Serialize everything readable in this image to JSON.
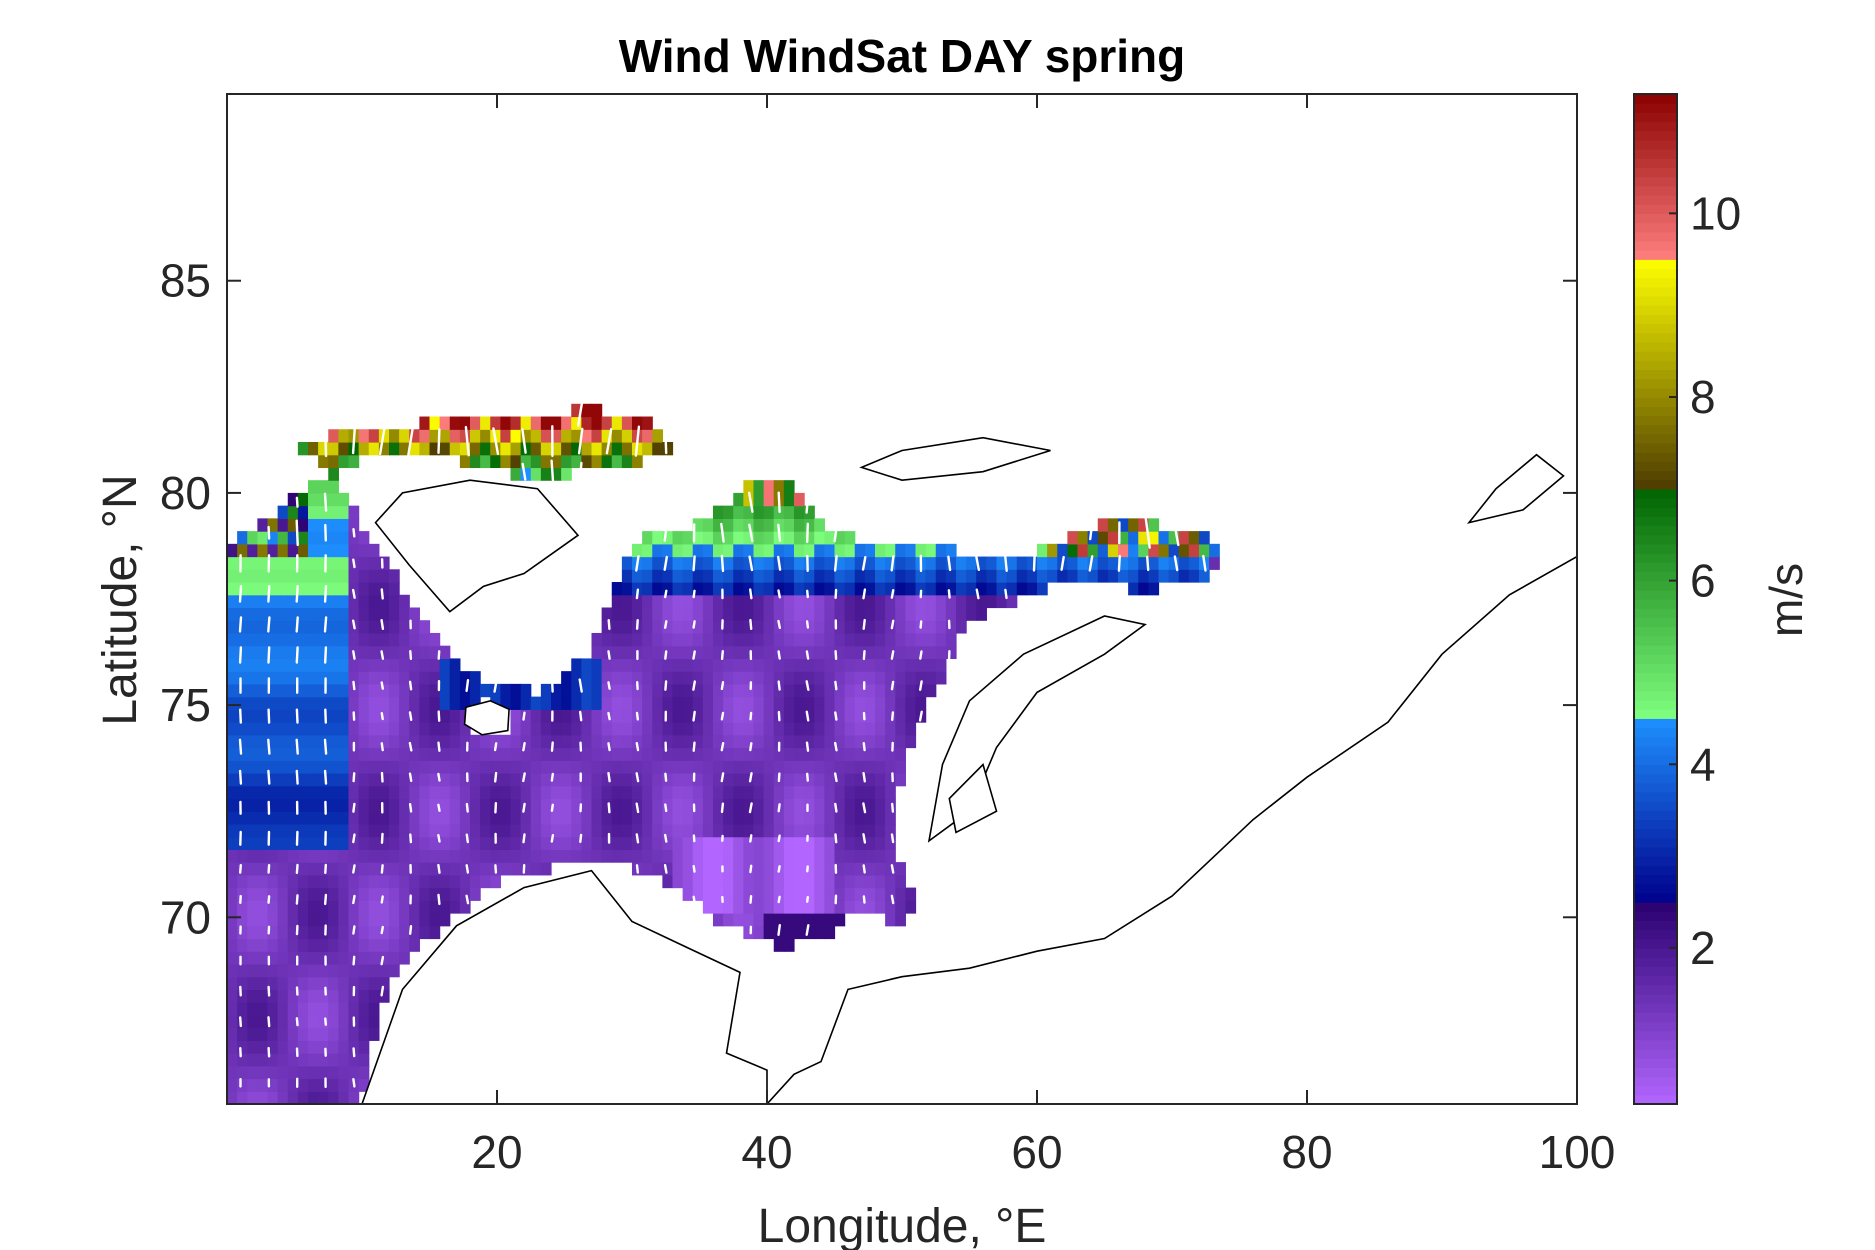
{
  "chart_data": {
    "type": "heatmap",
    "title": "Wind WindSat DAY spring",
    "xlabel": "Longitude, °E",
    "ylabel": "Latitude, °N",
    "xlim": [
      0,
      100
    ],
    "ylim": [
      65.6,
      89.4
    ],
    "xticks": [
      20,
      40,
      60,
      80,
      100
    ],
    "yticks": [
      70,
      75,
      80,
      85
    ],
    "xtick_labels": [
      "20",
      "40",
      "60",
      "80",
      "100"
    ],
    "ytick_labels": [
      "70",
      "75",
      "80",
      "85"
    ],
    "colorbar": {
      "label": "m/s",
      "range": [
        0.3,
        11.3
      ],
      "ticks": [
        2,
        4,
        6,
        8,
        10
      ],
      "tick_labels": [
        "2",
        "4",
        "6",
        "8",
        "10"
      ],
      "segments": [
        {
          "from": 0.3,
          "to": 2.5,
          "colors": [
            "#b266ff",
            "#2a0070"
          ]
        },
        {
          "from": 2.5,
          "to": 4.5,
          "colors": [
            "#00008b",
            "#1e90ff"
          ]
        },
        {
          "from": 4.5,
          "to": 7.0,
          "colors": [
            "#80ff80",
            "#006400"
          ]
        },
        {
          "from": 7.0,
          "to": 9.5,
          "colors": [
            "#4d3b00",
            "#ffff00"
          ]
        },
        {
          "from": 9.5,
          "to": 11.3,
          "colors": [
            "#ff7f7f",
            "#8b0000"
          ]
        }
      ]
    },
    "grid": false
  }
}
